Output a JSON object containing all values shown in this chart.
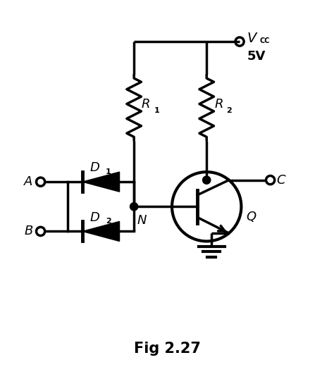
{
  "title": "Fig 2.27",
  "background_color": "#ffffff",
  "line_color": "#000000",
  "line_width": 2.5,
  "figsize": [
    4.74,
    5.21
  ],
  "dpi": 100,
  "xlim": [
    0,
    10
  ],
  "ylim": [
    0,
    11
  ]
}
